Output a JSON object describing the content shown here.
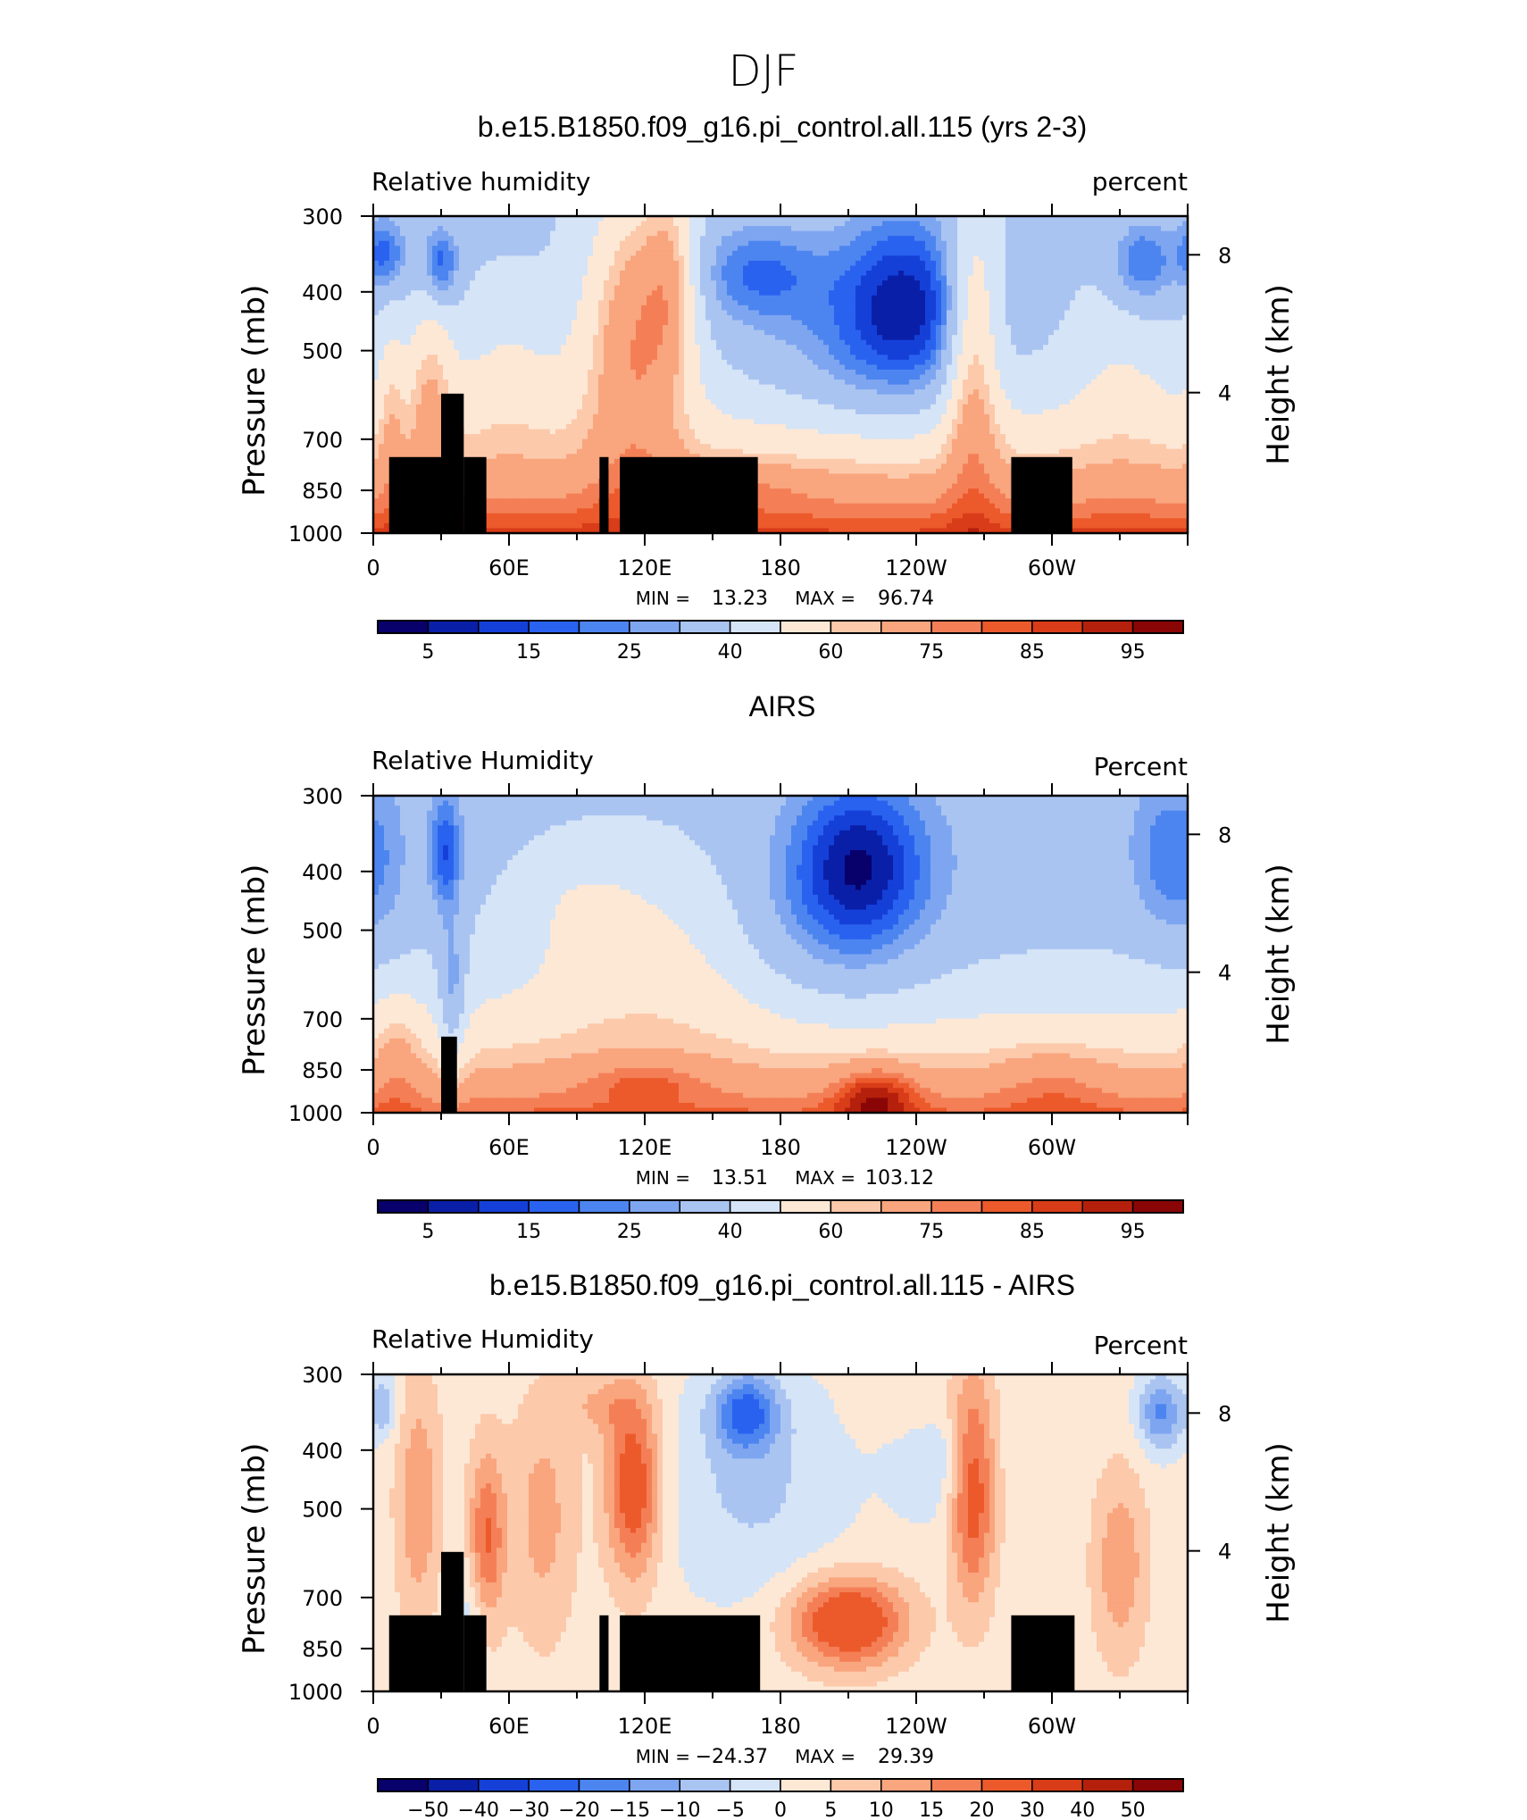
{
  "figure": {
    "title": "DJF"
  },
  "axes": {
    "xticks": [
      "0",
      "60E",
      "120E",
      "180",
      "120W",
      "60W"
    ],
    "yticks": [
      "300",
      "400",
      "500",
      "700",
      "850",
      "1000"
    ],
    "ylabel_left": "Pressure (mb)",
    "ylabel_right": "Height (km)",
    "right_ticks": [
      "8",
      "4"
    ]
  },
  "colorbars": {
    "abs": {
      "levels": [
        "5",
        "15",
        "25",
        "40",
        "60",
        "75",
        "85",
        "95"
      ],
      "colors": [
        "#08006b",
        "#0a1fa8",
        "#1540d8",
        "#2a62f0",
        "#4d85f0",
        "#7ea6f0",
        "#aac4f2",
        "#d5e4f6",
        "#fde8d6",
        "#fcc9ab",
        "#f9a57e",
        "#f47f56",
        "#ec5a2c",
        "#d83c18",
        "#b4200c",
        "#8a0606"
      ]
    },
    "diff": {
      "levels": [
        "−50",
        "−40",
        "−30",
        "−20",
        "−15",
        "−10",
        "−5",
        "0",
        "5",
        "10",
        "15",
        "20",
        "30",
        "40",
        "50"
      ],
      "colors": [
        "#08006b",
        "#0a1fa8",
        "#1540d8",
        "#2a62f0",
        "#4d85f0",
        "#7ea6f0",
        "#aac4f2",
        "#d5e4f6",
        "#fde8d6",
        "#fcc9ab",
        "#f9a57e",
        "#f47f56",
        "#ec5a2c",
        "#d83c18",
        "#b4200c",
        "#8a0606"
      ]
    }
  },
  "panels": [
    {
      "title": "b.e15.B1850.f09_g16.pi_control.all.115 (yrs 2-3)",
      "left_label": "Relative humidity",
      "right_label": "percent",
      "min_label": "MIN =",
      "min_value": "13.23",
      "max_label": "MAX =",
      "max_value": "96.74"
    },
    {
      "title": "AIRS",
      "left_label": "Relative Humidity",
      "right_label": "Percent",
      "min_label": "MIN =",
      "min_value": "13.51",
      "max_label": "MAX =",
      "max_value": "103.12"
    },
    {
      "title": "b.e15.B1850.f09_g16.pi_control.all.115 - AIRS",
      "left_label": "Relative Humidity",
      "right_label": "Percent",
      "min_label": "MIN =",
      "min_value": "−24.37",
      "max_label": "MAX =",
      "max_value": "29.39"
    }
  ],
  "chart_data": [
    {
      "type": "heatmap",
      "title": "b.e15.B1850.f09_g16.pi_control.all.115 (yrs 2-3)",
      "ylabel": "Pressure (mb)",
      "y2label": "Height (km)",
      "x_ticks": [
        "0",
        "60E",
        "120E",
        "180",
        "120W",
        "60W"
      ],
      "y_ticks": [
        300,
        400,
        500,
        700,
        850,
        1000
      ],
      "y2_ticks": [
        8,
        4
      ],
      "ylim": [
        1000,
        300
      ],
      "y_scale": "log",
      "field": "Relative humidity",
      "units": "percent",
      "contour_levels": [
        5,
        10,
        15,
        20,
        25,
        30,
        40,
        50,
        60,
        65,
        75,
        80,
        85,
        90,
        95
      ],
      "labeled_levels": [
        5,
        15,
        25,
        40,
        60,
        75,
        85,
        95
      ],
      "min": 13.23,
      "max": 96.74,
      "grid": false,
      "legend": "bottom colorbar"
    },
    {
      "type": "heatmap",
      "title": "AIRS",
      "ylabel": "Pressure (mb)",
      "y2label": "Height (km)",
      "x_ticks": [
        "0",
        "60E",
        "120E",
        "180",
        "120W",
        "60W"
      ],
      "y_ticks": [
        300,
        400,
        500,
        700,
        850,
        1000
      ],
      "y2_ticks": [
        8,
        4
      ],
      "ylim": [
        1000,
        300
      ],
      "y_scale": "log",
      "field": "Relative Humidity",
      "units": "Percent",
      "contour_levels": [
        5,
        10,
        15,
        20,
        25,
        30,
        40,
        50,
        60,
        65,
        75,
        80,
        85,
        90,
        95
      ],
      "labeled_levels": [
        5,
        15,
        25,
        40,
        60,
        75,
        85,
        95
      ],
      "min": 13.51,
      "max": 103.12,
      "grid": false,
      "legend": "bottom colorbar"
    },
    {
      "type": "heatmap",
      "title": "b.e15.B1850.f09_g16.pi_control.all.115 - AIRS",
      "ylabel": "Pressure (mb)",
      "y2label": "Height (km)",
      "x_ticks": [
        "0",
        "60E",
        "120E",
        "180",
        "120W",
        "60W"
      ],
      "y_ticks": [
        300,
        400,
        500,
        700,
        850,
        1000
      ],
      "y2_ticks": [
        8,
        4
      ],
      "ylim": [
        1000,
        300
      ],
      "y_scale": "log",
      "field": "Relative Humidity",
      "units": "Percent",
      "contour_levels": [
        -50,
        -40,
        -30,
        -20,
        -15,
        -10,
        -5,
        0,
        5,
        10,
        15,
        20,
        30,
        40,
        50
      ],
      "min": -24.37,
      "max": 29.39,
      "grid": false,
      "legend": "bottom colorbar"
    }
  ]
}
